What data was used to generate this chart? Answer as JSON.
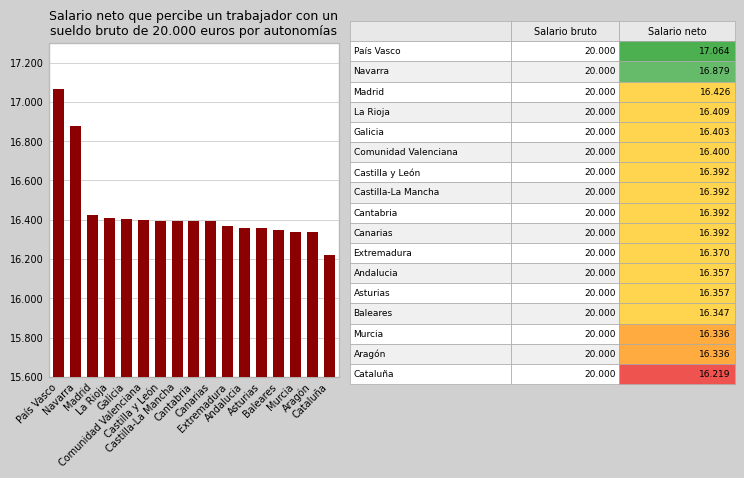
{
  "title": "Salario neto que percibe un trabajador con un\nsueldo bruto de 20.000 euros por autonomías",
  "regions": [
    "País Vasco",
    "Navarra",
    "Madrid",
    "La Rioja",
    "Galicia",
    "Comunidad Valenciana",
    "Castilla y León",
    "Castilla-La Mancha",
    "Cantabria",
    "Canarias",
    "Extremadura",
    "Andalucia",
    "Asturias",
    "Baleares",
    "Murcia",
    "Aragón",
    "Cataluña"
  ],
  "salario_bruto": [
    20000,
    20000,
    20000,
    20000,
    20000,
    20000,
    20000,
    20000,
    20000,
    20000,
    20000,
    20000,
    20000,
    20000,
    20000,
    20000,
    20000
  ],
  "salario_neto": [
    17064,
    16879,
    16426,
    16409,
    16403,
    16400,
    16392,
    16392,
    16392,
    16392,
    16370,
    16357,
    16357,
    16347,
    16336,
    16336,
    16219
  ],
  "bar_color": "#8B0000",
  "ylim_min": 15600,
  "ylim_max": 17300,
  "yticks": [
    15600,
    15800,
    16000,
    16200,
    16400,
    16600,
    16800,
    17000,
    17200
  ],
  "cell_colors": {
    "País Vasco": "#4CAF50",
    "Navarra": "#66BB6A",
    "Madrid": "#FFD54F",
    "La Rioja": "#FFD54F",
    "Galicia": "#FFD54F",
    "Comunidad Valenciana": "#FFD54F",
    "Castilla y León": "#FFD54F",
    "Castilla-La Mancha": "#FFD54F",
    "Cantabria": "#FFD54F",
    "Canarias": "#FFD54F",
    "Extremadura": "#FFD54F",
    "Andalucia": "#FFD54F",
    "Asturias": "#FFD54F",
    "Baleares": "#FFD54F",
    "Murcia": "#FFAB40",
    "Aragón": "#FFAB40",
    "Cataluña": "#EF5350"
  },
  "fig_bg": "#D0D0D0",
  "chart_bg": "#FFFFFF",
  "table_bg": "#D0D0D0",
  "header_bg": "#E8E8E8",
  "row_bg_odd": "#FFFFFF",
  "row_bg_even": "#F0F0F0",
  "border_color": "#AAAAAA",
  "col_labels": [
    "",
    "Salario bruto",
    "Salario neto"
  ]
}
